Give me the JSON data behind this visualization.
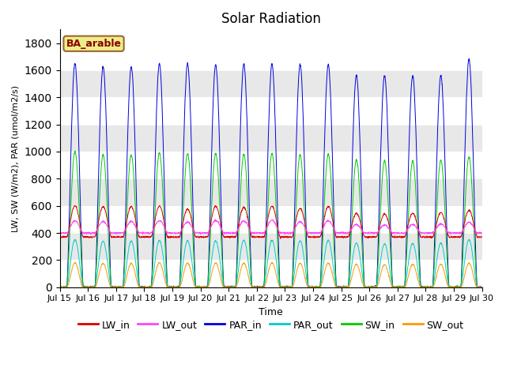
{
  "title": "Solar Radiation",
  "xlabel": "Time",
  "ylabel": "LW, SW (W/m2), PAR (umol/m2/s)",
  "site_label": "BA_arable",
  "ylim": [
    0,
    1900
  ],
  "yticks": [
    0,
    200,
    400,
    600,
    800,
    1000,
    1200,
    1400,
    1600,
    1800
  ],
  "xstart_day": 15,
  "xend_day": 30,
  "days": 15,
  "dt_minutes": 10,
  "series_colors": {
    "LW_in": "#dd0000",
    "LW_out": "#ff44ff",
    "PAR_in": "#0000dd",
    "PAR_out": "#00cccc",
    "SW_in": "#00cc00",
    "SW_out": "#ff9900"
  },
  "bg_gray": "#e8e8e8",
  "bg_white": "#ffffff",
  "figsize": [
    6.4,
    4.8
  ],
  "dpi": 100,
  "par_in_peaks": [
    1650,
    1625,
    1625,
    1650,
    1645,
    1640,
    1645,
    1645,
    1640,
    1640,
    1560,
    1560,
    1560,
    1560,
    1680
  ],
  "sw_in_peaks": [
    1000,
    975,
    975,
    990,
    985,
    985,
    980,
    985,
    975,
    980,
    940,
    930,
    930,
    935,
    960
  ],
  "par_out_peaks": [
    350,
    340,
    340,
    345,
    342,
    342,
    346,
    346,
    342,
    345,
    325,
    320,
    322,
    325,
    350
  ],
  "sw_out_peaks": [
    180,
    175,
    175,
    180,
    178,
    178,
    178,
    180,
    176,
    178,
    168,
    166,
    168,
    170,
    178
  ],
  "lw_in_base": 370,
  "lw_in_peaks": [
    600,
    595,
    595,
    598,
    575,
    598,
    590,
    598,
    580,
    595,
    545,
    540,
    545,
    550,
    568
  ],
  "lw_out_base": 400,
  "lw_out_peaks": [
    490,
    485,
    485,
    492,
    480,
    492,
    488,
    495,
    482,
    490,
    462,
    458,
    462,
    466,
    480
  ]
}
